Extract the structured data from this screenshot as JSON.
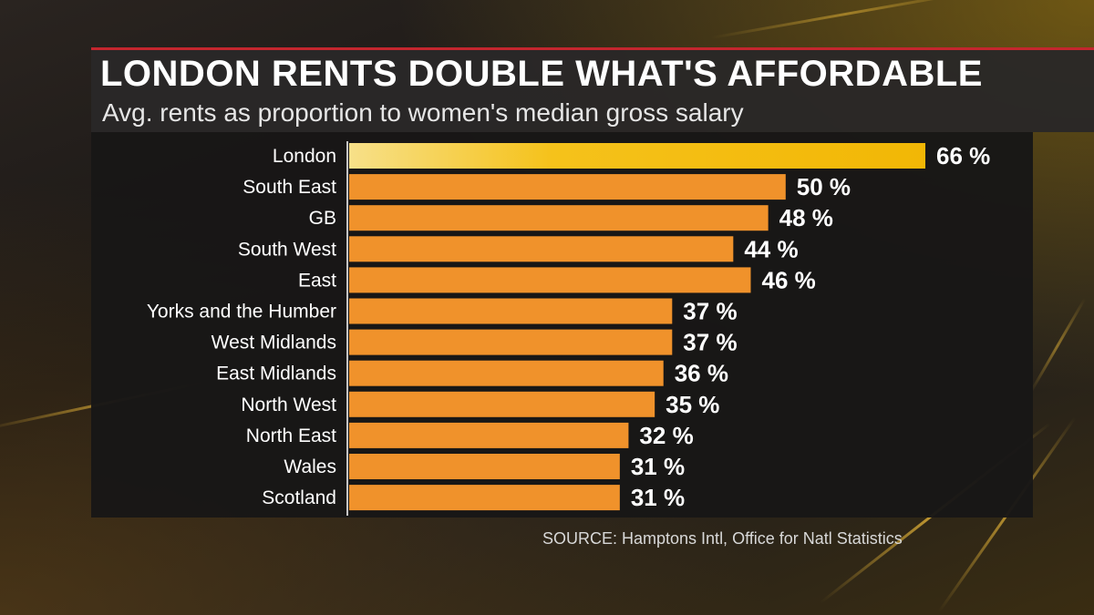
{
  "title": "LONDON RENTS DOUBLE WHAT'S AFFORDABLE",
  "subtitle": "Avg. rents as proportion to women's median gross salary",
  "source": "SOURCE: Hamptons Intl, Office for Natl Statistics",
  "colors": {
    "accent_rule": "#c4262e",
    "highlight_bar": "#f2b705",
    "bar": "#f0922b",
    "label_text": "#ffffff"
  },
  "chart_data": {
    "type": "bar",
    "orientation": "horizontal",
    "title": "LONDON RENTS DOUBLE WHAT'S AFFORDABLE",
    "subtitle": "Avg. rents as proportion to women's median gross salary",
    "categories": [
      "London",
      "South East",
      "GB",
      "South West",
      "East",
      "Yorks and the Humber",
      "West Midlands",
      "East Midlands",
      "North West",
      "North East",
      "Wales",
      "Scotland"
    ],
    "values": [
      66,
      50,
      48,
      44,
      46,
      37,
      37,
      36,
      35,
      32,
      31,
      31
    ],
    "value_labels": [
      "66 %",
      "50 %",
      "48 %",
      "44 %",
      "46 %",
      "37 %",
      "37 %",
      "36 %",
      "35 %",
      "32 %",
      "31 %",
      "31 %"
    ],
    "highlight": "London",
    "unit": "%",
    "xlim": [
      0,
      66
    ],
    "grid": false,
    "legend": "none"
  }
}
